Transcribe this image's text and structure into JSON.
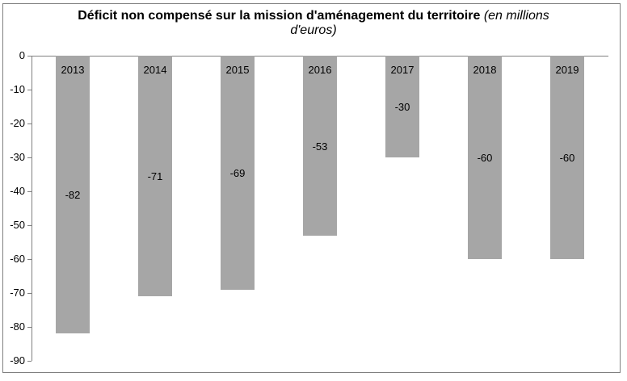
{
  "title": {
    "main": "Déficit non compensé sur la mission d'aménagement du territoire",
    "unit": "(en millions d'euros)"
  },
  "chart_data": {
    "type": "bar",
    "title": "Déficit non compensé sur la mission d'aménagement du territoire (en millions d'euros)",
    "categories": [
      "2013",
      "2014",
      "2015",
      "2016",
      "2017",
      "2018",
      "2019"
    ],
    "values": [
      -82,
      -71,
      -69,
      -53,
      -30,
      -60,
      -60
    ],
    "xlabel": "",
    "ylabel": "",
    "ylim": [
      -90,
      0
    ],
    "yticks": [
      0,
      -10,
      -20,
      -30,
      -40,
      -50,
      -60,
      -70,
      -80,
      -90
    ],
    "grid": false,
    "legend": false,
    "bar_color": "#a6a6a6",
    "axis_color": "#808080",
    "text_color": "#000000",
    "category_label_position": "inside-top",
    "value_label_position": "inside-center"
  },
  "frame": {
    "border_color": "#808080",
    "background": "#ffffff"
  }
}
